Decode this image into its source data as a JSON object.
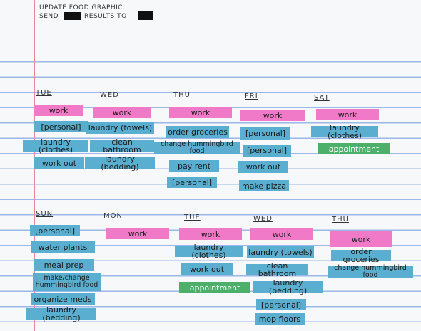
{
  "header": {
    "line1": "UPDATE FOOD GRAPHIC",
    "line2_start": "SEND",
    "line2_end": "RESULTS TO"
  },
  "weeks": [
    {
      "days": [
        {
          "label": "TUE",
          "items": [
            {
              "text": "work",
              "color": "#f07ac8"
            },
            {
              "text": "[personal]",
              "color": "#5aaed0"
            },
            {
              "text": "laundry (clothes)",
              "color": "#5aaed0"
            },
            {
              "text": "work out",
              "color": "#5aaed0"
            }
          ]
        },
        {
          "label": "WED",
          "items": [
            {
              "text": "work",
              "color": "#f07ac8"
            },
            {
              "text": "laundry (towels)",
              "color": "#5aaed0"
            },
            {
              "text": "clean bathroom",
              "color": "#5aaed0"
            },
            {
              "text": "laundry (bedding)",
              "color": "#5aaed0"
            }
          ]
        },
        {
          "label": "THU",
          "items": [
            {
              "text": "work",
              "color": "#f07ac8"
            },
            {
              "text": "order groceries",
              "color": "#5aaed0"
            },
            {
              "text": "change hummingbird food",
              "color": "#5aaed0"
            },
            {
              "text": "pay rent",
              "color": "#5aaed0"
            },
            {
              "text": "[personal]",
              "color": "#5aaed0"
            }
          ]
        },
        {
          "label": "FRI",
          "items": [
            {
              "text": "work",
              "color": "#f07ac8"
            },
            {
              "text": "[personal]",
              "color": "#5aaed0"
            },
            {
              "text": "[personal]",
              "color": "#5aaed0"
            },
            {
              "text": "work out",
              "color": "#5aaed0"
            },
            {
              "text": "make pizza",
              "color": "#5aaed0"
            }
          ]
        },
        {
          "label": "SAT",
          "items": [
            {
              "text": "work",
              "color": "#f07ac8"
            },
            {
              "text": "laundry (clothes)",
              "color": "#5aaed0"
            },
            {
              "text": "appointment",
              "color": "#4caf6a"
            }
          ]
        }
      ]
    },
    {
      "days": [
        {
          "label": "SUN",
          "items": [
            {
              "text": "[personal]",
              "color": "#5aaed0"
            },
            {
              "text": "water plants",
              "color": "#5aaed0"
            },
            {
              "text": "meal prep",
              "color": "#5aaed0"
            },
            {
              "text": "make/change hummingbird food",
              "color": "#5aaed0"
            },
            {
              "text": "organize meds",
              "color": "#5aaed0"
            },
            {
              "text": "laundry (bedding)",
              "color": "#5aaed0"
            }
          ]
        },
        {
          "label": "MON",
          "items": [
            {
              "text": "work",
              "color": "#f07ac8"
            }
          ]
        },
        {
          "label": "TUE",
          "items": [
            {
              "text": "work",
              "color": "#f07ac8"
            },
            {
              "text": "laundry (clothes)",
              "color": "#5aaed0"
            },
            {
              "text": "work out",
              "color": "#5aaed0"
            },
            {
              "text": "appointment",
              "color": "#4caf6a"
            }
          ]
        },
        {
          "label": "WED",
          "items": [
            {
              "text": "work",
              "color": "#f07ac8"
            },
            {
              "text": "laundry (towels)",
              "color": "#5aaed0"
            },
            {
              "text": "clean bathroom",
              "color": "#5aaed0"
            },
            {
              "text": "laundry (bedding)",
              "color": "#5aaed0"
            },
            {
              "text": "[personal]",
              "color": "#5aaed0"
            },
            {
              "text": "mop floors",
              "color": "#5aaed0"
            }
          ]
        },
        {
          "label": "THU",
          "items": [
            {
              "text": "work",
              "color": "#f07ac8"
            },
            {
              "text": "order groceries",
              "color": "#5aaed0"
            },
            {
              "text": "change hummingbird food",
              "color": "#5aaed0"
            }
          ]
        }
      ]
    }
  ]
}
